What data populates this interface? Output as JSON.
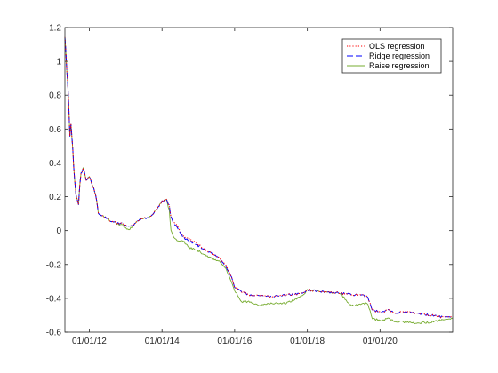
{
  "chart_data": {
    "type": "line",
    "title": "",
    "xlabel": "",
    "ylabel": "",
    "xlim": [
      "2011-05-01",
      "2021-12-31"
    ],
    "ylim": [
      -0.6,
      1.2
    ],
    "x_ticks": [
      {
        "date": "2012-01-01",
        "label": "01/01/12"
      },
      {
        "date": "2014-01-01",
        "label": "01/01/14"
      },
      {
        "date": "2016-01-01",
        "label": "01/01/16"
      },
      {
        "date": "2018-01-01",
        "label": "01/01/18"
      },
      {
        "date": "2020-01-01",
        "label": "01/01/20"
      }
    ],
    "y_ticks": [
      {
        "value": -0.6,
        "label": "-0.6"
      },
      {
        "value": -0.4,
        "label": "-0.4"
      },
      {
        "value": -0.2,
        "label": "-0.2"
      },
      {
        "value": 0,
        "label": "0"
      },
      {
        "value": 0.2,
        "label": "0.2"
      },
      {
        "value": 0.4,
        "label": "0.4"
      },
      {
        "value": 0.6,
        "label": "0.6"
      },
      {
        "value": 0.8,
        "label": "0.8"
      },
      {
        "value": 1,
        "label": "1"
      },
      {
        "value": 1.2,
        "label": "1.2"
      }
    ],
    "grid": false,
    "legend_position": "top-right",
    "series": [
      {
        "name": "OLS regression",
        "color": "#ff0000",
        "style": "dotted",
        "points": [
          [
            "2011-05-01",
            1.15
          ],
          [
            "2011-05-20",
            0.95
          ],
          [
            "2011-06-05",
            0.8
          ],
          [
            "2011-06-20",
            0.55
          ],
          [
            "2011-07-01",
            0.62
          ],
          [
            "2011-07-20",
            0.48
          ],
          [
            "2011-08-05",
            0.3
          ],
          [
            "2011-08-20",
            0.22
          ],
          [
            "2011-09-15",
            0.16
          ],
          [
            "2011-10-10",
            0.35
          ],
          [
            "2011-11-01",
            0.37
          ],
          [
            "2011-12-01",
            0.3
          ],
          [
            "2012-01-01",
            0.32
          ],
          [
            "2012-02-15",
            0.25
          ],
          [
            "2012-03-15",
            0.18
          ],
          [
            "2012-04-01",
            0.1
          ],
          [
            "2012-06-01",
            0.08
          ],
          [
            "2012-09-01",
            0.05
          ],
          [
            "2012-12-01",
            0.04
          ],
          [
            "2013-02-01",
            0.02
          ],
          [
            "2013-04-01",
            0.04
          ],
          [
            "2013-06-01",
            0.07
          ],
          [
            "2013-09-01",
            0.08
          ],
          [
            "2013-11-01",
            0.12
          ],
          [
            "2014-01-01",
            0.17
          ],
          [
            "2014-02-15",
            0.18
          ],
          [
            "2014-03-15",
            0.15
          ],
          [
            "2014-04-01",
            0.08
          ],
          [
            "2014-05-01",
            0.05
          ],
          [
            "2014-06-01",
            0.03
          ],
          [
            "2014-08-01",
            -0.03
          ],
          [
            "2014-10-01",
            -0.05
          ],
          [
            "2015-01-01",
            -0.08
          ],
          [
            "2015-04-01",
            -0.12
          ],
          [
            "2015-06-01",
            -0.14
          ],
          [
            "2015-08-01",
            -0.16
          ],
          [
            "2015-10-01",
            -0.2
          ],
          [
            "2015-12-01",
            -0.27
          ],
          [
            "2016-01-01",
            -0.33
          ],
          [
            "2016-03-01",
            -0.36
          ],
          [
            "2016-06-01",
            -0.38
          ],
          [
            "2016-09-01",
            -0.38
          ],
          [
            "2017-01-01",
            -0.39
          ],
          [
            "2017-06-01",
            -0.38
          ],
          [
            "2017-12-01",
            -0.37
          ],
          [
            "2018-01-01",
            -0.35
          ],
          [
            "2018-06-01",
            -0.36
          ],
          [
            "2018-12-01",
            -0.37
          ],
          [
            "2019-06-01",
            -0.38
          ],
          [
            "2019-09-01",
            -0.39
          ],
          [
            "2019-10-15",
            -0.47
          ],
          [
            "2020-01-01",
            -0.48
          ],
          [
            "2020-04-01",
            -0.47
          ],
          [
            "2020-06-01",
            -0.49
          ],
          [
            "2020-09-01",
            -0.48
          ],
          [
            "2021-01-01",
            -0.49
          ],
          [
            "2021-06-01",
            -0.5
          ],
          [
            "2021-09-01",
            -0.51
          ],
          [
            "2021-12-31",
            -0.51
          ]
        ]
      },
      {
        "name": "Ridge regression",
        "color": "#0000ff",
        "style": "dashed",
        "points": [
          [
            "2011-05-01",
            1.15
          ],
          [
            "2011-05-20",
            0.95
          ],
          [
            "2011-06-05",
            0.8
          ],
          [
            "2011-06-20",
            0.55
          ],
          [
            "2011-07-01",
            0.62
          ],
          [
            "2011-07-20",
            0.48
          ],
          [
            "2011-08-05",
            0.3
          ],
          [
            "2011-08-20",
            0.22
          ],
          [
            "2011-09-15",
            0.16
          ],
          [
            "2011-10-10",
            0.35
          ],
          [
            "2011-11-01",
            0.37
          ],
          [
            "2011-12-01",
            0.3
          ],
          [
            "2012-01-01",
            0.32
          ],
          [
            "2012-02-15",
            0.25
          ],
          [
            "2012-03-15",
            0.18
          ],
          [
            "2012-04-01",
            0.1
          ],
          [
            "2012-06-01",
            0.08
          ],
          [
            "2012-09-01",
            0.05
          ],
          [
            "2012-12-01",
            0.04
          ],
          [
            "2013-02-01",
            0.02
          ],
          [
            "2013-04-01",
            0.04
          ],
          [
            "2013-06-01",
            0.07
          ],
          [
            "2013-09-01",
            0.08
          ],
          [
            "2013-11-01",
            0.12
          ],
          [
            "2014-01-01",
            0.17
          ],
          [
            "2014-02-15",
            0.18
          ],
          [
            "2014-03-15",
            0.15
          ],
          [
            "2014-04-01",
            0.08
          ],
          [
            "2014-05-01",
            0.04
          ],
          [
            "2014-06-01",
            0.02
          ],
          [
            "2014-08-01",
            -0.04
          ],
          [
            "2014-10-01",
            -0.06
          ],
          [
            "2015-01-01",
            -0.09
          ],
          [
            "2015-04-01",
            -0.12
          ],
          [
            "2015-06-01",
            -0.14
          ],
          [
            "2015-08-01",
            -0.16
          ],
          [
            "2015-10-01",
            -0.21
          ],
          [
            "2015-12-01",
            -0.27
          ],
          [
            "2016-01-01",
            -0.33
          ],
          [
            "2016-03-01",
            -0.36
          ],
          [
            "2016-06-01",
            -0.38
          ],
          [
            "2016-09-01",
            -0.38
          ],
          [
            "2017-01-01",
            -0.39
          ],
          [
            "2017-06-01",
            -0.38
          ],
          [
            "2017-12-01",
            -0.37
          ],
          [
            "2018-01-01",
            -0.35
          ],
          [
            "2018-06-01",
            -0.36
          ],
          [
            "2018-12-01",
            -0.37
          ],
          [
            "2019-06-01",
            -0.38
          ],
          [
            "2019-09-01",
            -0.39
          ],
          [
            "2019-10-15",
            -0.47
          ],
          [
            "2020-01-01",
            -0.48
          ],
          [
            "2020-04-01",
            -0.47
          ],
          [
            "2020-06-01",
            -0.49
          ],
          [
            "2020-09-01",
            -0.48
          ],
          [
            "2021-01-01",
            -0.49
          ],
          [
            "2021-06-01",
            -0.5
          ],
          [
            "2021-09-01",
            -0.51
          ],
          [
            "2021-12-31",
            -0.51
          ]
        ]
      },
      {
        "name": "Raise regression",
        "color": "#77ac30",
        "style": "solid",
        "points": [
          [
            "2011-05-01",
            1.15
          ],
          [
            "2011-05-20",
            0.95
          ],
          [
            "2011-06-05",
            0.8
          ],
          [
            "2011-06-20",
            0.55
          ],
          [
            "2011-07-01",
            0.62
          ],
          [
            "2011-07-20",
            0.48
          ],
          [
            "2011-08-05",
            0.3
          ],
          [
            "2011-08-20",
            0.22
          ],
          [
            "2011-09-15",
            0.16
          ],
          [
            "2011-10-10",
            0.35
          ],
          [
            "2011-11-01",
            0.37
          ],
          [
            "2011-12-01",
            0.3
          ],
          [
            "2012-01-01",
            0.32
          ],
          [
            "2012-02-15",
            0.25
          ],
          [
            "2012-03-15",
            0.18
          ],
          [
            "2012-04-01",
            0.1
          ],
          [
            "2012-06-01",
            0.08
          ],
          [
            "2012-09-01",
            0.05
          ],
          [
            "2012-12-01",
            0.03
          ],
          [
            "2013-02-01",
            0.0
          ],
          [
            "2013-04-01",
            0.04
          ],
          [
            "2013-06-01",
            0.07
          ],
          [
            "2013-09-01",
            0.08
          ],
          [
            "2013-11-01",
            0.12
          ],
          [
            "2014-01-01",
            0.17
          ],
          [
            "2014-02-15",
            0.18
          ],
          [
            "2014-03-15",
            0.12
          ],
          [
            "2014-04-01",
            0.0
          ],
          [
            "2014-05-01",
            -0.04
          ],
          [
            "2014-06-01",
            -0.06
          ],
          [
            "2014-08-01",
            -0.06
          ],
          [
            "2014-10-01",
            -0.1
          ],
          [
            "2015-01-01",
            -0.12
          ],
          [
            "2015-04-01",
            -0.15
          ],
          [
            "2015-06-01",
            -0.17
          ],
          [
            "2015-08-01",
            -0.18
          ],
          [
            "2015-10-01",
            -0.22
          ],
          [
            "2015-12-01",
            -0.3
          ],
          [
            "2016-01-01",
            -0.35
          ],
          [
            "2016-03-01",
            -0.42
          ],
          [
            "2016-06-01",
            -0.42
          ],
          [
            "2016-09-01",
            -0.44
          ],
          [
            "2017-01-01",
            -0.43
          ],
          [
            "2017-06-01",
            -0.43
          ],
          [
            "2017-12-01",
            -0.38
          ],
          [
            "2018-01-01",
            -0.35
          ],
          [
            "2018-06-01",
            -0.36
          ],
          [
            "2018-12-01",
            -0.37
          ],
          [
            "2019-03-01",
            -0.44
          ],
          [
            "2019-06-01",
            -0.44
          ],
          [
            "2019-09-01",
            -0.43
          ],
          [
            "2019-10-15",
            -0.52
          ],
          [
            "2020-01-01",
            -0.53
          ],
          [
            "2020-04-01",
            -0.52
          ],
          [
            "2020-06-01",
            -0.54
          ],
          [
            "2020-09-01",
            -0.54
          ],
          [
            "2021-01-01",
            -0.55
          ],
          [
            "2021-06-01",
            -0.54
          ],
          [
            "2021-09-01",
            -0.53
          ],
          [
            "2021-12-31",
            -0.52
          ]
        ]
      }
    ]
  }
}
